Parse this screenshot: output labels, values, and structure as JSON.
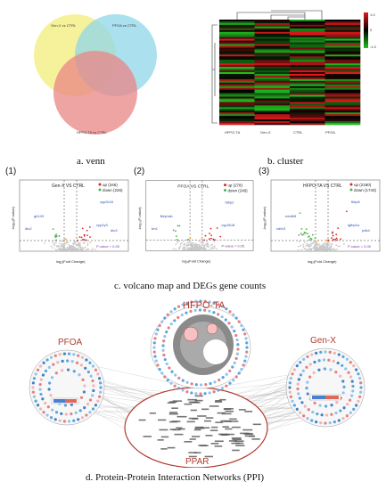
{
  "panels": {
    "venn": {
      "caption": "a. venn",
      "sets": [
        "Gen-X vs CTRL",
        "PFOA vs CTRL",
        "HFPO-TA vs CTRL"
      ],
      "colors": {
        "a": "#f4f08a",
        "b": "#8fd6e8",
        "c": "#e98585"
      }
    },
    "cluster": {
      "caption": "b. cluster",
      "columns": [
        "HFPO-TA",
        "Gen-X",
        "CTRL",
        "PFOA"
      ],
      "legend_max": "1.0",
      "legend_mid": "0",
      "legend_min": "-1.0"
    },
    "volcano": {
      "caption": "c. volcano map and DEGs gene counts",
      "plots": [
        {
          "index": "(1)",
          "title": "Gen-X VS CTRL",
          "up": "up (346)",
          "down": "down (226)",
          "xlabel": "log₂(Fold Change)",
          "ylabel": "-log₁₀(P-value)",
          "pvalue": "P-value = 0.05",
          "genes": [
            "cyp2k18",
            "cyp2y3",
            "gb143",
            "dio2",
            "dio3"
          ]
        },
        {
          "index": "(2)",
          "title": "PFOA VS CTRL",
          "up": "up (278)",
          "down": "down (249)",
          "xlabel": "log₂(Fold Change)",
          "ylabel": "-log₁₀(P-value)",
          "pvalue": "P-value = 0.05",
          "genes": [
            "fabp2",
            "cyp2k18",
            "fkbp1ab",
            "ivn1"
          ]
        },
        {
          "index": "(3)",
          "title": "HFPO-TA VS CTRL",
          "up": "up (2180)",
          "down": "down (1743)",
          "xlabel": "log₂(Fold Change)",
          "ylabel": "-log₁₀(P-value)",
          "pvalue": "P-value = 0.05",
          "genes": [
            "fkbp5",
            "igfbp1a",
            "ndufb9",
            "rab10",
            "pdk4"
          ]
        }
      ]
    },
    "ppi": {
      "caption": "d. Protein-Protein Interaction Networks (PPI)",
      "labels": {
        "hfpo": "HFPO-TA",
        "pfoa": "PFOA",
        "genx": "Gen-X",
        "ppar": "PPAR"
      }
    }
  },
  "colors": {
    "up": "#d8262a",
    "down": "#4fb14a",
    "neutral": "#f3a32a",
    "label": "#2c4fb0",
    "ppar": "#b03a2e"
  }
}
